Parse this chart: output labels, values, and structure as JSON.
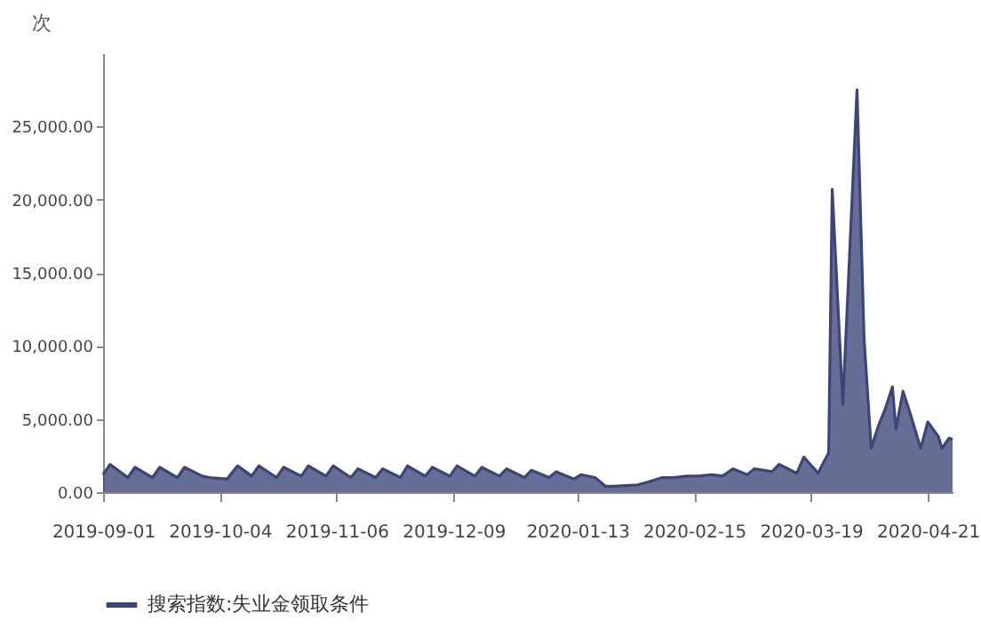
{
  "chart_data": {
    "type": "area",
    "ylabel": "次",
    "legend": "bottom",
    "grid": false,
    "x": [
      "2019-09-01",
      "2019-09-03",
      "2019-09-08",
      "2019-09-10",
      "2019-09-15",
      "2019-09-17",
      "2019-09-22",
      "2019-09-24",
      "2019-09-29",
      "2019-10-01",
      "2019-10-06",
      "2019-10-09",
      "2019-10-13",
      "2019-10-15",
      "2019-10-20",
      "2019-10-22",
      "2019-10-27",
      "2019-10-29",
      "2019-11-03",
      "2019-11-05",
      "2019-11-10",
      "2019-11-12",
      "2019-11-17",
      "2019-11-19",
      "2019-11-24",
      "2019-11-26",
      "2019-12-01",
      "2019-12-03",
      "2019-12-08",
      "2019-12-10",
      "2019-12-15",
      "2019-12-17",
      "2019-12-22",
      "2019-12-24",
      "2019-12-29",
      "2019-12-31",
      "2020-01-05",
      "2020-01-07",
      "2020-01-12",
      "2020-01-14",
      "2020-01-18",
      "2020-01-21",
      "2020-01-23",
      "2020-01-30",
      "2020-02-02",
      "2020-02-06",
      "2020-02-09",
      "2020-02-13",
      "2020-02-16",
      "2020-02-20",
      "2020-02-23",
      "2020-02-26",
      "2020-03-01",
      "2020-03-03",
      "2020-03-08",
      "2020-03-10",
      "2020-03-15",
      "2020-03-17",
      "2020-03-21",
      "2020-03-24",
      "2020-03-25",
      "2020-03-28",
      "2020-04-01",
      "2020-04-03",
      "2020-04-05",
      "2020-04-07",
      "2020-04-09",
      "2020-04-11",
      "2020-04-12",
      "2020-04-14",
      "2020-04-16",
      "2020-04-19",
      "2020-04-21",
      "2020-04-24",
      "2020-04-25",
      "2020-04-27",
      "2020-04-28"
    ],
    "series": [
      {
        "name": "搜索指数:失业金领取条件",
        "color": "#3b4579",
        "values": [
          1200,
          1900,
          1000,
          1700,
          1000,
          1700,
          1000,
          1700,
          1100,
          1000,
          900,
          1800,
          1100,
          1800,
          1000,
          1700,
          1100,
          1800,
          1100,
          1800,
          1000,
          1600,
          1000,
          1600,
          1000,
          1800,
          1100,
          1700,
          1100,
          1800,
          1100,
          1700,
          1100,
          1600,
          1000,
          1500,
          1000,
          1400,
          900,
          1200,
          1000,
          400,
          400,
          500,
          700,
          1000,
          1000,
          1100,
          1100,
          1200,
          1100,
          1600,
          1200,
          1600,
          1400,
          1900,
          1300,
          2400,
          1300,
          2700,
          20700,
          6000,
          27500,
          10500,
          3000,
          4500,
          5700,
          7200,
          4300,
          6900,
          5400,
          3000,
          4800,
          3800,
          3000,
          3700,
          3600
        ]
      }
    ],
    "xlim": [
      "2019-09-01",
      "2020-04-28"
    ],
    "xticks": [
      "2019-09-01",
      "2019-10-04",
      "2019-11-06",
      "2019-12-09",
      "2020-01-13",
      "2020-02-15",
      "2020-03-19",
      "2020-04-21"
    ],
    "ylim": [
      0,
      30000
    ],
    "yticks": [
      {
        "value": 0,
        "label": "0.00"
      },
      {
        "value": 5000,
        "label": "5,000.00"
      },
      {
        "value": 10000,
        "label": "10,000.00"
      },
      {
        "value": 15000,
        "label": "15,000.00"
      },
      {
        "value": 20000,
        "label": "20,000.00"
      },
      {
        "value": 25000,
        "label": "25,000.00"
      }
    ]
  }
}
